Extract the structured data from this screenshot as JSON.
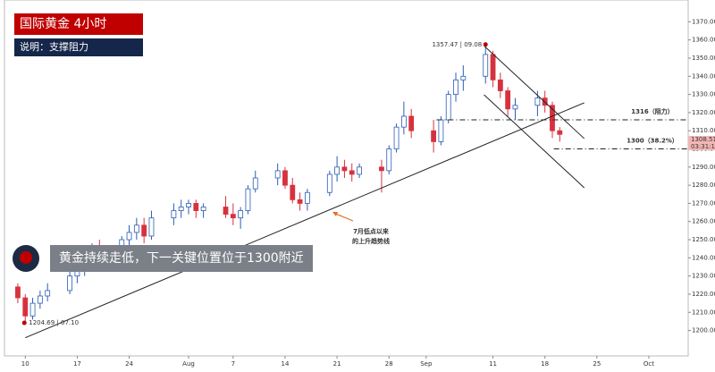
{
  "header": {
    "title": "国际黄金  4小时",
    "subtitle": "说明：支撑阻力"
  },
  "banner": {
    "text": "黄金持续走低，下一关键位置位于1300附近"
  },
  "chart_data": {
    "type": "candlestick",
    "x": [
      -4,
      -1,
      0,
      1,
      2,
      3,
      6,
      7,
      8,
      9,
      10,
      13,
      14,
      15,
      16,
      17,
      20,
      21,
      22,
      23,
      24,
      27,
      28,
      29,
      30,
      31,
      34,
      35,
      36,
      37,
      38,
      41,
      42,
      43,
      44,
      45,
      48,
      49,
      50,
      51,
      52,
      55,
      56,
      57,
      58,
      59,
      62,
      63,
      64,
      65,
      66,
      69,
      70,
      71,
      72
    ],
    "open": [
      1226,
      1224,
      1218,
      1208,
      1215,
      1219,
      1222,
      1230,
      1234,
      1238,
      1244,
      1242,
      1250,
      1254,
      1258,
      1252,
      1262,
      1266,
      1268,
      1270,
      1266,
      1268,
      1264,
      1262,
      1266,
      1278,
      1284,
      1288,
      1280,
      1272,
      1270,
      1276,
      1286,
      1290,
      1288,
      1286,
      1290,
      1288,
      1300,
      1312,
      1318,
      1310,
      1304,
      1316,
      1330,
      1338,
      1340,
      1352,
      1338,
      1332,
      1322,
      1324,
      1328,
      1324,
      1310
    ],
    "high": [
      1228,
      1226,
      1220,
      1218,
      1222,
      1226,
      1234,
      1238,
      1242,
      1248,
      1250,
      1252,
      1258,
      1262,
      1262,
      1266,
      1270,
      1272,
      1272,
      1272,
      1270,
      1274,
      1270,
      1268,
      1280,
      1288,
      1292,
      1290,
      1284,
      1276,
      1278,
      1288,
      1296,
      1294,
      1292,
      1292,
      1294,
      1302,
      1314,
      1326,
      1322,
      1316,
      1318,
      1332,
      1342,
      1346,
      1357.47,
      1354,
      1342,
      1334,
      1328,
      1332,
      1332,
      1326,
      1312
    ],
    "low": [
      1222,
      1215,
      1204.69,
      1206,
      1212,
      1216,
      1220,
      1226,
      1230,
      1234,
      1238,
      1240,
      1246,
      1250,
      1248,
      1250,
      1258,
      1262,
      1264,
      1262,
      1262,
      1262,
      1258,
      1256,
      1264,
      1276,
      1280,
      1278,
      1270,
      1266,
      1266,
      1274,
      1282,
      1284,
      1282,
      1284,
      1276,
      1286,
      1298,
      1308,
      1306,
      1298,
      1302,
      1314,
      1326,
      1332,
      1336,
      1334,
      1328,
      1318,
      1316,
      1318,
      1320,
      1306,
      1304
    ],
    "close": [
      1224,
      1218,
      1208,
      1215,
      1219,
      1222,
      1230,
      1234,
      1238,
      1244,
      1242,
      1250,
      1254,
      1258,
      1252,
      1262,
      1266,
      1268,
      1270,
      1266,
      1268,
      1264,
      1262,
      1266,
      1278,
      1284,
      1288,
      1280,
      1272,
      1270,
      1276,
      1286,
      1290,
      1288,
      1286,
      1290,
      1288,
      1300,
      1312,
      1318,
      1310,
      1304,
      1316,
      1330,
      1338,
      1340,
      1352,
      1338,
      1332,
      1322,
      1324,
      1328,
      1324,
      1310,
      1308
    ],
    "up_color": "#2b5db5",
    "down_color": "#d6323e",
    "xlim": [
      -2.8,
      89.3
    ],
    "xticks": [
      {
        "value": 0,
        "label": "10"
      },
      {
        "value": 7,
        "label": "17"
      },
      {
        "value": 14,
        "label": "24"
      },
      {
        "value": 22,
        "label": "Aug"
      },
      {
        "value": 28,
        "label": "7"
      },
      {
        "value": 35,
        "label": "14"
      },
      {
        "value": 42,
        "label": "21"
      },
      {
        "value": 49,
        "label": "28"
      },
      {
        "value": 54,
        "label": "Sep"
      },
      {
        "value": 63,
        "label": "11"
      },
      {
        "value": 70,
        "label": "18"
      },
      {
        "value": 77,
        "label": "25"
      },
      {
        "value": 84,
        "label": "Oct"
      }
    ],
    "ylim": [
      1186,
      1382
    ],
    "yticks": [
      {
        "value": 1200,
        "label": "1200.00"
      },
      {
        "value": 1210,
        "label": "1210.00"
      },
      {
        "value": 1220,
        "label": "1220.00"
      },
      {
        "value": 1230,
        "label": "1230.00"
      },
      {
        "value": 1240,
        "label": "1240.00"
      },
      {
        "value": 1250,
        "label": "1250.00"
      },
      {
        "value": 1260,
        "label": "1260.00"
      },
      {
        "value": 1270,
        "label": "1270.00"
      },
      {
        "value": 1280,
        "label": "1280.00"
      },
      {
        "value": 1290,
        "label": "1290.00"
      },
      {
        "value": 1300,
        "label": "1300.00"
      },
      {
        "value": 1310,
        "label": "1310.00"
      },
      {
        "value": 1320,
        "label": "1320.00"
      },
      {
        "value": 1330,
        "label": "1330.00"
      },
      {
        "value": 1340,
        "label": "1340.00"
      },
      {
        "value": 1350,
        "label": "1350.00"
      },
      {
        "value": 1360,
        "label": "1360.00"
      },
      {
        "value": 1370,
        "label": "1370.00"
      }
    ],
    "trendlines": [
      {
        "x": [
          0,
          75.3
        ],
        "y": [
          1196,
          1325.4
        ]
      },
      {
        "x": [
          61.9,
          75.3
        ],
        "y": [
          1356.4,
          1305.7
        ]
      },
      {
        "x": [
          61.8,
          75.3
        ],
        "y": [
          1329.8,
          1278.6
        ]
      }
    ],
    "levels": [
      {
        "value": 1316,
        "from": 55.4,
        "label": "1316（阻力）"
      },
      {
        "value": 1300,
        "from": 71.2,
        "label": "1300（38.2%）"
      }
    ],
    "peak_label": "1357.47 | 09.08",
    "low_label": "1204.69 | 07.10",
    "trend_note": [
      "7月低点以来",
      "的上升趋势线"
    ],
    "price_tags": [
      "1308.51",
      "03:31:13"
    ]
  }
}
